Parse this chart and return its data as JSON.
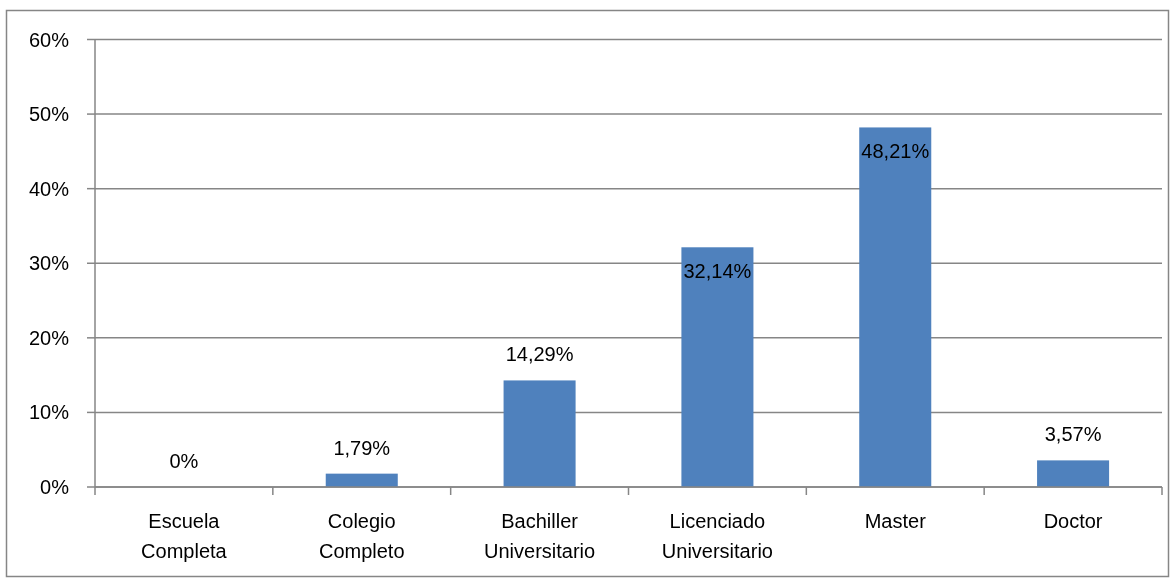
{
  "chart_data": {
    "type": "bar",
    "categories": [
      "Escuela Completa",
      "Colegio Completo",
      "Bachiller Universitario",
      "Licenciado Universitario",
      "Master",
      "Doctor"
    ],
    "values": [
      0,
      1.79,
      14.29,
      32.14,
      48.21,
      3.57
    ],
    "value_labels": [
      "0%",
      "1,79%",
      "14,29%",
      "32,14%",
      "48,21%",
      "3,57%"
    ],
    "color": "#4f81bd",
    "ylim": [
      0,
      60
    ],
    "yticks": [
      {
        "value": 0,
        "label": "0%"
      },
      {
        "value": 10,
        "label": "10%"
      },
      {
        "value": 20,
        "label": "20%"
      },
      {
        "value": 30,
        "label": "30%"
      },
      {
        "value": 40,
        "label": "40%"
      },
      {
        "value": 50,
        "label": "50%"
      },
      {
        "value": 60,
        "label": "60%"
      }
    ],
    "grid": "y"
  }
}
